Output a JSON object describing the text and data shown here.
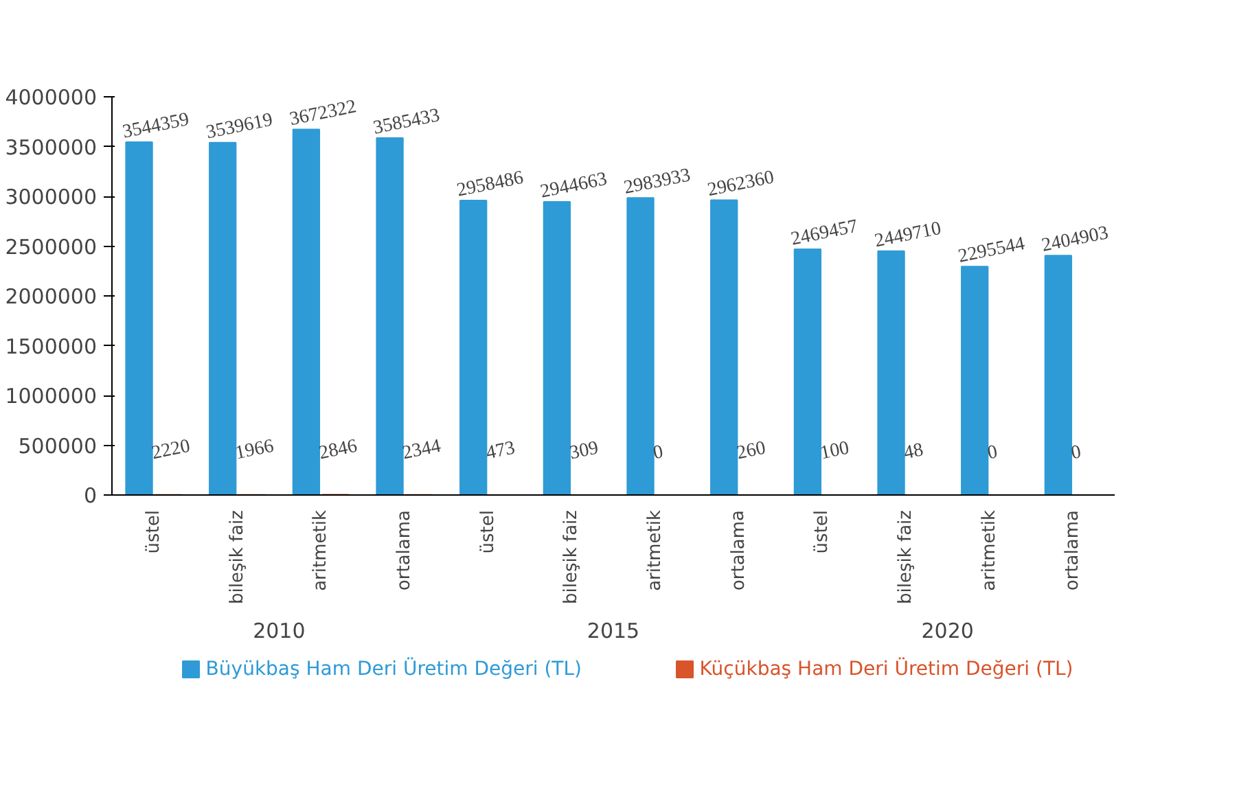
{
  "chart_data": {
    "type": "bar",
    "categories": [
      "üstel",
      "bileşik faiz",
      "aritmetik",
      "ortalama",
      "üstel",
      "bileşik faiz",
      "aritmetik",
      "ortalama",
      "üstel",
      "bileşik faiz",
      "aritmetik",
      "ortalama"
    ],
    "series": [
      {
        "name": "Büyükbaş Ham Deri Üretim Değeri (TL)",
        "color": "#2e9bd6",
        "values": [
          3544359,
          3539619,
          3672322,
          3585433,
          2958486,
          2944663,
          2983933,
          2962360,
          2469457,
          2449710,
          2295544,
          2404903
        ]
      },
      {
        "name": "Küçükbaş Ham Deri Üretim Değeri (TL)",
        "color": "#d9542b",
        "values": [
          2220,
          1966,
          2846,
          2344,
          473,
          309,
          0,
          260,
          100,
          48,
          0,
          0
        ]
      }
    ],
    "annotations": [
      "2010",
      "2015",
      "2020"
    ],
    "ylim": [
      0,
      4000000
    ],
    "yticks": [
      0,
      500000,
      1000000,
      1500000,
      2000000,
      2500000,
      3000000,
      3500000,
      4000000
    ],
    "data_labels": true,
    "grid": false,
    "legend": "bottom"
  }
}
